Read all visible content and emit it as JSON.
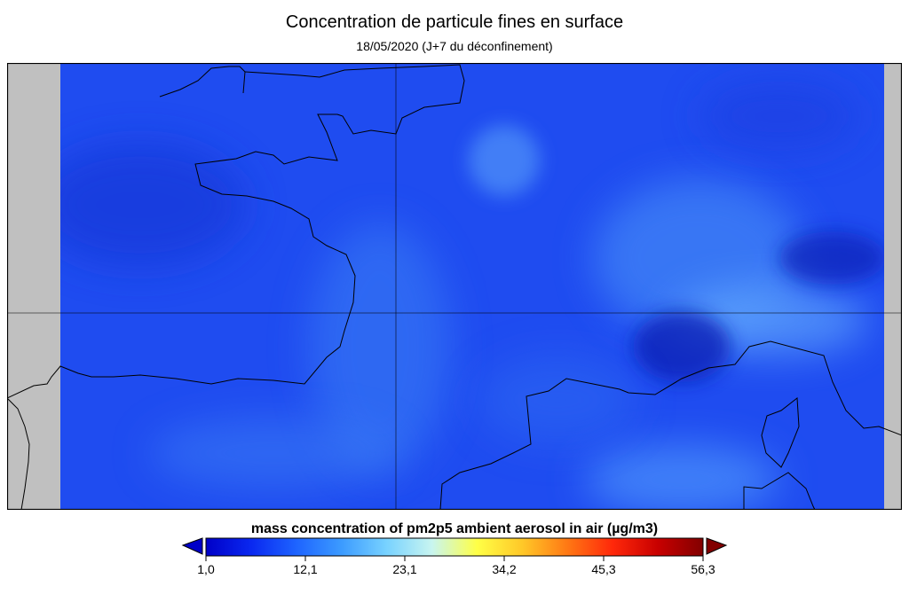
{
  "title": "Concentration de particule fines en surface",
  "subtitle": "18/05/2020 (J+7 du déconfinement)",
  "colorbar": {
    "label": "mass concentration of pm2p5 ambient aerosol in air (µg/m3)",
    "ticks": [
      "1,0",
      "12,1",
      "23,1",
      "34,2",
      "45,3",
      "56,3"
    ],
    "min": 1.0,
    "max": 56.3,
    "colors": [
      "#0000c8",
      "#0a28f0",
      "#1e64ff",
      "#3c9bff",
      "#78d2ff",
      "#c8f5f0",
      "#ffff46",
      "#ffc828",
      "#ff7814",
      "#ff280a",
      "#c80000",
      "#820000"
    ]
  },
  "map": {
    "background_color": "#1f4cf0",
    "no_data_color": "#c0c0c0",
    "coastline_color": "#000000",
    "gridline_color": "#000000"
  }
}
